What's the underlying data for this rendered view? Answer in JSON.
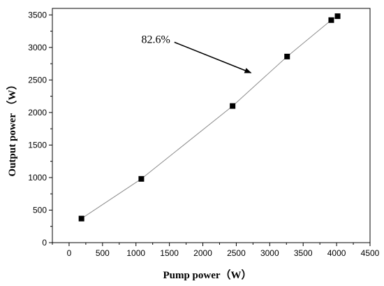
{
  "chart_data": {
    "type": "scatter",
    "title": "",
    "xlabel": "Pump power（W）",
    "ylabel": "Output power （W）",
    "xlim": [
      -250,
      4500
    ],
    "ylim": [
      0,
      3600
    ],
    "x_ticks": [
      0,
      500,
      1000,
      1500,
      2000,
      2500,
      3000,
      3500,
      4000,
      4500
    ],
    "y_ticks": [
      0,
      500,
      1000,
      1500,
      2000,
      2500,
      3000,
      3500
    ],
    "grid": false,
    "legend": "none",
    "series": [
      {
        "x": [
          185,
          1080,
          2445,
          3260,
          3920,
          4015
        ],
        "y": [
          370,
          980,
          2100,
          2860,
          3420,
          3480
        ]
      }
    ],
    "annotations": [
      {
        "text": "82.6%",
        "arrow_from": [
          1575,
          3080
        ],
        "arrow_to": [
          2720,
          2610
        ]
      }
    ],
    "colors": {
      "marker": "#000000",
      "line": "#8c8c8c",
      "axis": "#000000"
    }
  }
}
